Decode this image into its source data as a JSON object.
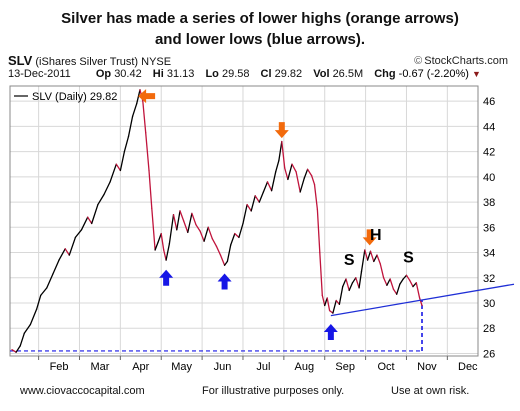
{
  "caption": {
    "line1": "Silver has made a series of lower highs (orange arrows)",
    "line2": "and lower lows (blue arrows)."
  },
  "header": {
    "symbol": "SLV",
    "name": "(iShares Silver Trust)",
    "exchange": "NYSE",
    "brand": "StockCharts.com",
    "date": "13-Dec-2011",
    "open_label": "Op",
    "open_value": "30.42",
    "high_label": "Hi",
    "high_value": "31.13",
    "low_label": "Lo",
    "low_value": "29.58",
    "close_label": "Cl",
    "close_value": "29.82",
    "vol_label": "Vol",
    "vol_value": "26.5M",
    "chg_label": "Chg",
    "chg_value": "-0.67 (-2.20%)"
  },
  "chart_data": {
    "type": "line",
    "legend": {
      "label": "SLV (Daily) 29.82",
      "placement": "top-left"
    },
    "x_labels": [
      "Feb",
      "Mar",
      "Apr",
      "May",
      "Jun",
      "Jul",
      "Aug",
      "Sep",
      "Oct",
      "Nov",
      "Dec"
    ],
    "y_ticks": [
      26,
      28,
      30,
      32,
      34,
      36,
      38,
      40,
      42,
      44,
      46
    ],
    "ylim": [
      25.8,
      47.2
    ],
    "x_range_months": [
      0.3,
      11.75
    ],
    "grid": true,
    "colors": {
      "up": "#000000",
      "down": "#c0143c",
      "grid": "#d8d8d8",
      "trendline": "#1f2fd6",
      "orange": "#f26a0c",
      "blue": "#1616e6"
    },
    "series": [
      {
        "values": [
          [
            0.35,
            26.3
          ],
          [
            0.45,
            26.1
          ],
          [
            0.55,
            26.6
          ],
          [
            0.65,
            27.6
          ],
          [
            0.8,
            28.3
          ],
          [
            0.95,
            29.5
          ],
          [
            1.05,
            30.6
          ],
          [
            1.2,
            31.2
          ],
          [
            1.35,
            32.3
          ],
          [
            1.5,
            33.4
          ],
          [
            1.65,
            34.3
          ],
          [
            1.75,
            33.8
          ],
          [
            1.9,
            35.2
          ],
          [
            2.05,
            35.8
          ],
          [
            2.2,
            36.8
          ],
          [
            2.3,
            36.3
          ],
          [
            2.45,
            37.8
          ],
          [
            2.6,
            38.6
          ],
          [
            2.75,
            39.6
          ],
          [
            2.9,
            41.0
          ],
          [
            3.0,
            40.5
          ],
          [
            3.1,
            42.0
          ],
          [
            3.2,
            43.2
          ],
          [
            3.3,
            44.8
          ],
          [
            3.4,
            45.8
          ],
          [
            3.48,
            46.9
          ],
          [
            3.55,
            46.0
          ],
          [
            3.62,
            43.5
          ],
          [
            3.7,
            40.5
          ],
          [
            3.77,
            37.5
          ],
          [
            3.85,
            34.2
          ],
          [
            3.92,
            34.8
          ],
          [
            4.0,
            35.5
          ],
          [
            4.06,
            34.2
          ],
          [
            4.12,
            33.4
          ],
          [
            4.2,
            34.7
          ],
          [
            4.3,
            37.0
          ],
          [
            4.38,
            35.8
          ],
          [
            4.46,
            37.3
          ],
          [
            4.55,
            36.5
          ],
          [
            4.65,
            35.6
          ],
          [
            4.75,
            37.1
          ],
          [
            4.85,
            36.2
          ],
          [
            4.95,
            35.7
          ],
          [
            5.05,
            34.9
          ],
          [
            5.15,
            36.0
          ],
          [
            5.25,
            35.1
          ],
          [
            5.35,
            34.5
          ],
          [
            5.45,
            33.8
          ],
          [
            5.55,
            33.0
          ],
          [
            5.62,
            33.3
          ],
          [
            5.7,
            34.6
          ],
          [
            5.8,
            35.5
          ],
          [
            5.9,
            35.2
          ],
          [
            6.0,
            36.3
          ],
          [
            6.1,
            37.8
          ],
          [
            6.2,
            37.3
          ],
          [
            6.3,
            38.5
          ],
          [
            6.4,
            38.0
          ],
          [
            6.5,
            38.8
          ],
          [
            6.6,
            39.6
          ],
          [
            6.7,
            38.9
          ],
          [
            6.8,
            40.4
          ],
          [
            6.88,
            41.3
          ],
          [
            6.95,
            42.8
          ],
          [
            7.02,
            40.7
          ],
          [
            7.1,
            39.8
          ],
          [
            7.2,
            41.0
          ],
          [
            7.3,
            40.4
          ],
          [
            7.4,
            38.8
          ],
          [
            7.5,
            39.9
          ],
          [
            7.58,
            40.6
          ],
          [
            7.68,
            40.1
          ],
          [
            7.75,
            39.4
          ],
          [
            7.82,
            37.4
          ],
          [
            7.88,
            34.0
          ],
          [
            7.94,
            30.6
          ],
          [
            8.0,
            29.8
          ],
          [
            8.06,
            30.4
          ],
          [
            8.12,
            29.4
          ],
          [
            8.2,
            29.2
          ],
          [
            8.28,
            30.2
          ],
          [
            8.36,
            29.9
          ],
          [
            8.44,
            31.3
          ],
          [
            8.52,
            31.9
          ],
          [
            8.6,
            31.0
          ],
          [
            8.68,
            31.6
          ],
          [
            8.76,
            32.0
          ],
          [
            8.84,
            31.2
          ],
          [
            8.9,
            32.5
          ],
          [
            8.98,
            34.2
          ],
          [
            9.05,
            33.4
          ],
          [
            9.12,
            34.1
          ],
          [
            9.2,
            33.3
          ],
          [
            9.28,
            33.8
          ],
          [
            9.36,
            33.1
          ],
          [
            9.44,
            32.0
          ],
          [
            9.52,
            31.4
          ],
          [
            9.6,
            31.9
          ],
          [
            9.68,
            31.1
          ],
          [
            9.76,
            30.7
          ],
          [
            9.84,
            31.5
          ],
          [
            9.92,
            31.9
          ],
          [
            10.0,
            32.2
          ],
          [
            10.08,
            31.8
          ],
          [
            10.16,
            31.3
          ],
          [
            10.24,
            31.6
          ],
          [
            10.32,
            30.4
          ],
          [
            10.38,
            29.8
          ]
        ]
      }
    ],
    "annotations": [
      {
        "kind": "arrow-left",
        "color": "orange",
        "x": 3.63,
        "y": 46.4
      },
      {
        "kind": "arrow-down",
        "color": "orange",
        "x": 6.95,
        "y": 43.7
      },
      {
        "kind": "arrow-down",
        "color": "orange",
        "x": 9.1,
        "y": 35.2
      },
      {
        "kind": "arrow-up",
        "color": "blue",
        "x": 4.12,
        "y": 32.0
      },
      {
        "kind": "arrow-up",
        "color": "blue",
        "x": 5.55,
        "y": 31.7
      },
      {
        "kind": "arrow-up",
        "color": "blue",
        "x": 8.15,
        "y": 27.7
      },
      {
        "kind": "text",
        "text": "S",
        "x": 8.6,
        "y": 33.0
      },
      {
        "kind": "text",
        "text": "H",
        "x": 9.25,
        "y": 35.0
      },
      {
        "kind": "text",
        "text": "S",
        "x": 10.05,
        "y": 33.2
      },
      {
        "kind": "trendline",
        "from": [
          8.15,
          29.0
        ],
        "to": [
          11.75,
          31.0
        ]
      },
      {
        "kind": "dashed-horizontal",
        "y": 26.2,
        "from_x": 0.3,
        "to_x": 10.38
      },
      {
        "kind": "dashed-vertical",
        "x": 10.38,
        "from_y": 26.2,
        "to_y": 30.2
      }
    ]
  },
  "footer": {
    "left": "www.ciovaccocapital.com",
    "center": "For illustrative purposes only.",
    "right": "Use at own risk."
  }
}
